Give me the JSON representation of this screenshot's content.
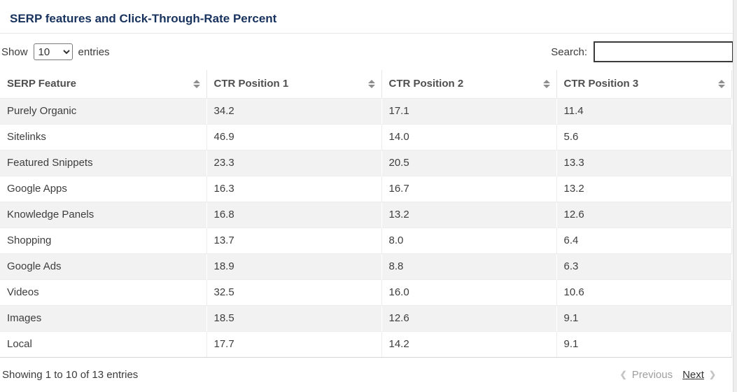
{
  "title": "SERP features and Click-Through-Rate Percent",
  "controls": {
    "show_label": "Show",
    "entries_label": "entries",
    "page_length_selected": "10",
    "search_label": "Search:",
    "search_value": ""
  },
  "table": {
    "columns": [
      "SERP Feature",
      "CTR Position 1",
      "CTR Position 2",
      "CTR Position 3"
    ],
    "rows": [
      [
        "Purely Organic",
        "34.2",
        "17.1",
        "11.4"
      ],
      [
        "Sitelinks",
        "46.9",
        "14.0",
        "5.6"
      ],
      [
        "Featured Snippets",
        "23.3",
        "20.5",
        "13.3"
      ],
      [
        "Google Apps",
        "16.3",
        "16.7",
        "13.2"
      ],
      [
        "Knowledge Panels",
        "16.8",
        "13.2",
        "12.6"
      ],
      [
        "Shopping",
        "13.7",
        "8.0",
        "6.4"
      ],
      [
        "Google Ads",
        "18.9",
        "8.8",
        "6.3"
      ],
      [
        "Videos",
        "32.5",
        "16.0",
        "10.6"
      ],
      [
        "Images",
        "18.5",
        "12.6",
        "9.1"
      ],
      [
        "Local",
        "17.7",
        "14.2",
        "9.1"
      ]
    ]
  },
  "footer": {
    "info": "Showing 1 to 10 of 13 entries",
    "previous_label": "Previous",
    "next_label": "Next"
  },
  "colors": {
    "title": "#18325e",
    "header_text": "#4f4f4f",
    "body_text": "#3d3d3d",
    "row_stripe": "#f2f2f2",
    "sort_icon": "#8d8d8d",
    "next_link": "#333333",
    "previous_disabled": "#9e9e9e"
  }
}
